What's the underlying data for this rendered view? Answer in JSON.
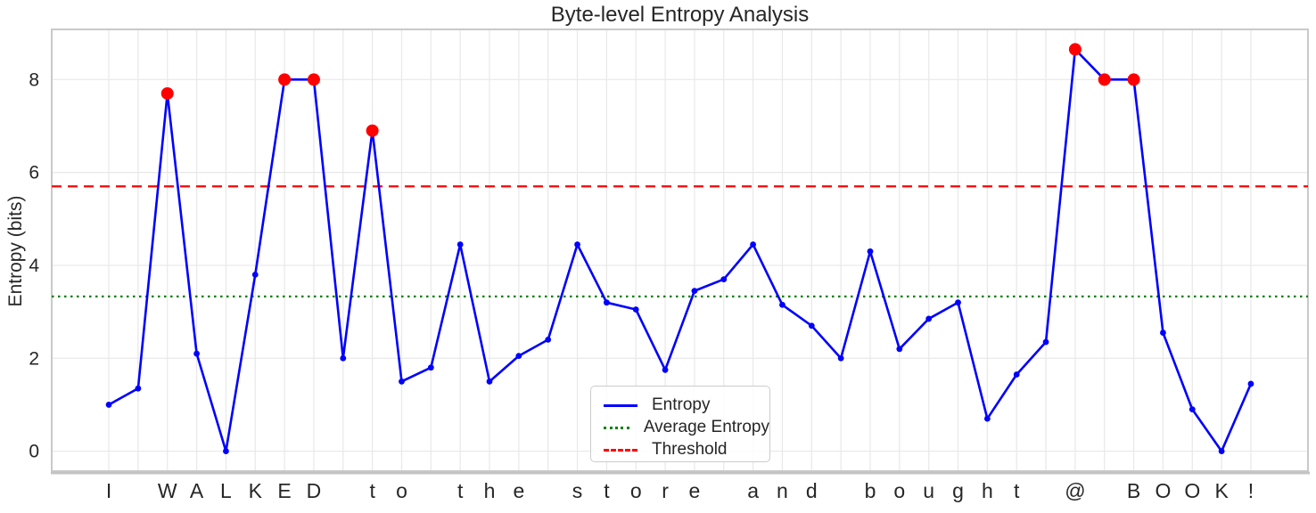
{
  "chart_data": {
    "type": "line",
    "title": "Byte-level Entropy Analysis",
    "xlabel": "",
    "ylabel": "Entropy (bits)",
    "categories": [
      "I",
      "",
      "W",
      "A",
      "L",
      "K",
      "E",
      "D",
      "",
      "t",
      "o",
      "",
      "t",
      "h",
      "e",
      "",
      "s",
      "t",
      "o",
      "r",
      "e",
      "",
      "a",
      "n",
      "d",
      "",
      "b",
      "o",
      "u",
      "g",
      "h",
      "t",
      "",
      "@",
      "",
      "B",
      "O",
      "O",
      "K",
      "!"
    ],
    "values": [
      1.0,
      1.35,
      7.7,
      2.1,
      0.0,
      3.8,
      8.0,
      8.0,
      2.0,
      6.9,
      1.5,
      1.8,
      4.45,
      1.5,
      2.05,
      2.4,
      4.45,
      3.2,
      3.05,
      1.75,
      3.45,
      3.7,
      4.45,
      3.15,
      2.7,
      2.0,
      4.3,
      2.2,
      2.85,
      3.2,
      0.7,
      1.65,
      2.35,
      8.65,
      8.0,
      8.0,
      2.55,
      0.9,
      0.0,
      1.45
    ],
    "average_entropy": 3.33,
    "threshold": 5.7,
    "yticks": [
      0,
      2,
      4,
      6,
      8
    ],
    "ylim": [
      -0.43,
      9.08
    ],
    "grid": true,
    "legend_position": "lower-center",
    "legend": [
      {
        "label": "Entropy",
        "color": "#0000ff",
        "style": "solid"
      },
      {
        "label": "Average Entropy",
        "color": "#008000",
        "style": "dotted"
      },
      {
        "label": "Threshold",
        "color": "#ff0000",
        "style": "dashed"
      }
    ],
    "colors": {
      "line": "#0000ff",
      "anomaly_marker": "#ff0000",
      "average": "#008000",
      "threshold": "#ff0000",
      "grid": "#e8e8e8",
      "spine": "#c9c9c9",
      "text": "#262626"
    }
  }
}
